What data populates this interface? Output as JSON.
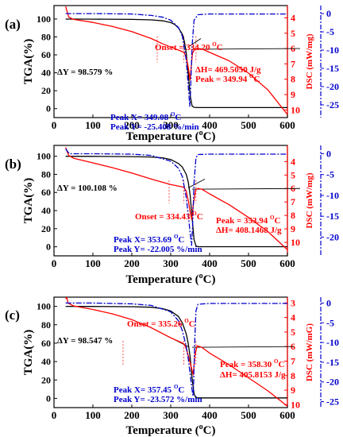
{
  "figure": {
    "x_axis_label_main": "Temperature (",
    "x_axis_label_unit": "C)",
    "x_axis_label_degree": "o"
  },
  "colors": {
    "tga": "#000000",
    "dsc": "#ff0000",
    "dtg": "#0000cc"
  },
  "chart_data": [
    {
      "type": "line",
      "panel_label": "(a)",
      "xlabel": "Temperature (oC)",
      "xlim": [
        0,
        600
      ],
      "x_ticks": [
        0,
        100,
        200,
        300,
        400,
        500,
        600
      ],
      "ylabel_left": "TGA(%)",
      "ylim_left": [
        -10,
        115
      ],
      "y_ticks_left": [
        0,
        20,
        40,
        60,
        80,
        100
      ],
      "ylabel_right1": "DSC (mW/mg)",
      "ylim_right1": [
        10.5,
        3.2
      ],
      "y_ticks_right1": [
        4,
        5,
        6,
        7,
        8,
        9,
        10
      ],
      "ylabel_right2": "DTG (%/min)",
      "ylim_right2": [
        -28.5,
        2.2
      ],
      "y_ticks_right2": [
        0,
        -5,
        -10,
        -15,
        -20,
        -25
      ],
      "series": [
        {
          "axis": "tga",
          "x": [
            30,
            100,
            200,
            250,
            280,
            300,
            310,
            320,
            330,
            335,
            340,
            345,
            350,
            355,
            360,
            370,
            400,
            500,
            600
          ],
          "values": [
            99.9,
            99.8,
            99.6,
            99.0,
            98.0,
            96.0,
            94.0,
            90.0,
            83.0,
            75.0,
            62.0,
            40.0,
            15.0,
            3.0,
            1.4,
            1.2,
            1.2,
            1.2,
            1.2
          ]
        },
        {
          "axis": "dsc",
          "x": [
            30,
            34,
            38,
            50,
            100,
            150,
            200,
            250,
            280,
            300,
            320,
            334,
            340,
            345,
            350,
            352,
            356,
            362,
            370,
            380,
            400,
            450,
            500,
            550,
            600
          ],
          "values": [
            3.25,
            3.62,
            3.95,
            4.1,
            4.3,
            4.56,
            4.9,
            5.35,
            5.7,
            5.9,
            6.1,
            6.25,
            6.55,
            7.2,
            8.05,
            7.4,
            6.3,
            6.05,
            6.0,
            6.02,
            6.25,
            6.8,
            7.6,
            8.7,
            10.3
          ]
        },
        {
          "axis": "dtg",
          "x": [
            30,
            100,
            200,
            250,
            280,
            300,
            320,
            330,
            340,
            345,
            349,
            350,
            352,
            355,
            360,
            370,
            400,
            500,
            600
          ],
          "values": [
            0.0,
            0.0,
            -0.1,
            -0.5,
            -1.0,
            -1.8,
            -3.8,
            -6.2,
            -12.8,
            -19.5,
            -25.408,
            -24.0,
            -18.0,
            -9.0,
            -1.8,
            -0.3,
            -0.1,
            -0.1,
            -0.1
          ]
        }
      ],
      "annotations": {
        "dy": "ΔY = 98.579 %",
        "onset": "Onset = 334.20 ",
        "onset_unit": "C",
        "dh": "ΔH= 469.5050 J/g",
        "peak_dsc": "Peak = 349.94 ",
        "peak_dsc_unit": "C",
        "peak_x": "Peak X= 349.08 ",
        "peak_x_unit": "C",
        "peak_y": "Peak Y= -25.408 %/min"
      }
    },
    {
      "type": "line",
      "panel_label": "(b)",
      "xlabel": "Temperature (oC)",
      "xlim": [
        0,
        600
      ],
      "x_ticks": [
        0,
        100,
        200,
        300,
        400,
        500,
        600
      ],
      "ylabel_left": "TGA(%)",
      "ylim_left": [
        -10,
        112
      ],
      "y_ticks_left": [
        0,
        20,
        40,
        60,
        80,
        100
      ],
      "ylabel_right1": "DSC (mW/mg)",
      "ylim_right1": [
        11.0,
        2.8
      ],
      "y_ticks_right1": [
        4,
        5,
        6,
        7,
        8,
        9,
        10
      ],
      "ylabel_right2": "DTG (%/min)",
      "ylim_right2": [
        -24.5,
        2.0
      ],
      "y_ticks_right2": [
        0,
        -5,
        -10,
        -15,
        -20
      ],
      "series": [
        {
          "axis": "tga",
          "x": [
            30,
            100,
            200,
            250,
            280,
            300,
            320,
            330,
            340,
            345,
            350,
            355,
            360,
            365,
            370,
            400,
            500,
            600
          ],
          "values": [
            100.0,
            99.9,
            99.6,
            99.2,
            98.2,
            96.5,
            92.0,
            88.0,
            80.0,
            72.0,
            57.0,
            32.0,
            8.0,
            1.0,
            0.1,
            0.1,
            0.1,
            0.1
          ]
        },
        {
          "axis": "dsc",
          "x": [
            30,
            33,
            38,
            50,
            100,
            150,
            200,
            250,
            300,
            330,
            334,
            340,
            346,
            350,
            354,
            358,
            364,
            370,
            380,
            400,
            450,
            500,
            550,
            600
          ],
          "values": [
            2.95,
            3.2,
            3.55,
            3.75,
            4.1,
            4.45,
            4.85,
            5.3,
            5.7,
            5.88,
            5.92,
            6.2,
            7.0,
            7.75,
            8.3,
            7.2,
            6.1,
            6.0,
            6.05,
            6.4,
            7.2,
            8.15,
            9.2,
            10.55
          ]
        },
        {
          "axis": "dtg",
          "x": [
            30,
            35,
            40,
            100,
            200,
            250,
            300,
            320,
            330,
            340,
            345,
            350,
            353.69,
            356,
            360,
            365,
            370,
            400,
            500,
            600
          ],
          "values": [
            1.2,
            0.5,
            0.0,
            0.0,
            -0.1,
            -0.4,
            -1.8,
            -3.5,
            -5.5,
            -10.5,
            -14.5,
            -19.0,
            -22.005,
            -18.0,
            -7.0,
            -1.0,
            -0.2,
            -0.1,
            -0.1,
            -0.1
          ]
        }
      ],
      "annotations": {
        "dy": "ΔY = 100.108 %",
        "onset": "Onset = 334.43 ",
        "onset_unit": "C",
        "dh": "ΔH= 408.1468 J/g",
        "peak_dsc": "Peak = 353.94 ",
        "peak_dsc_unit": "C",
        "peak_x": "Peak X= 353.69 ",
        "peak_x_unit": "C",
        "peak_y": "Peak Y= -22.005 %/min"
      }
    },
    {
      "type": "line",
      "panel_label": "(c)",
      "xlabel": "Temperature (oC)",
      "xlim": [
        0,
        600
      ],
      "x_ticks": [
        0,
        100,
        200,
        300,
        400,
        500,
        600
      ],
      "ylabel_left": "TGA(%)",
      "ylim_left": [
        -10,
        110
      ],
      "y_ticks_left": [
        0,
        20,
        40,
        60,
        80,
        100
      ],
      "ylabel_right1": "DSC (mW/mG)",
      "ylim_right1": [
        10.2,
        2.6
      ],
      "y_ticks_right1": [
        3,
        4,
        5,
        6,
        7,
        8,
        9,
        10
      ],
      "ylabel_right2": "DTG (%/min)",
      "ylim_right2": [
        -26.5,
        1.5
      ],
      "y_ticks_right2": [
        0,
        -5,
        -10,
        -15,
        -20,
        -25
      ],
      "series": [
        {
          "axis": "tga",
          "x": [
            30,
            100,
            200,
            250,
            280,
            300,
            320,
            330,
            340,
            345,
            350,
            355,
            360,
            365,
            370,
            400,
            500,
            600
          ],
          "values": [
            100.0,
            99.9,
            99.6,
            99.0,
            97.5,
            95.0,
            89.0,
            82.0,
            70.0,
            60.0,
            45.0,
            22.0,
            5.0,
            0.8,
            0.5,
            0.5,
            0.5,
            0.5
          ]
        },
        {
          "axis": "dsc",
          "x": [
            30,
            33,
            36,
            50,
            100,
            150,
            200,
            250,
            300,
            330,
            335,
            340,
            348,
            354,
            358,
            362,
            368,
            380,
            400,
            450,
            500,
            550,
            600
          ],
          "values": [
            2.72,
            2.62,
            3.0,
            3.2,
            3.45,
            3.75,
            4.15,
            4.7,
            5.4,
            5.75,
            5.85,
            6.15,
            6.9,
            7.55,
            7.95,
            6.6,
            5.95,
            6.05,
            6.45,
            7.25,
            8.15,
            9.05,
            10.1
          ]
        },
        {
          "axis": "dtg",
          "x": [
            30,
            100,
            200,
            250,
            300,
            320,
            330,
            340,
            345,
            350,
            355,
            357.45,
            359,
            362,
            365,
            370,
            400,
            500,
            600
          ],
          "values": [
            0.0,
            0.0,
            -0.2,
            -0.6,
            -2.2,
            -4.5,
            -7.0,
            -11.0,
            -14.0,
            -18.0,
            -22.0,
            -23.572,
            -20.0,
            -9.0,
            -2.0,
            -0.3,
            -0.1,
            -0.1,
            -0.1
          ]
        }
      ],
      "annotations": {
        "dy": "ΔY = 98.547 %",
        "onset": "Onset = 335.26 ",
        "onset_unit": "C",
        "dh": "ΔH= 405.8153 J/g",
        "peak_dsc": "Peak = 358.30 ",
        "peak_dsc_unit": "C",
        "peak_x": "Peak X= 357.45 ",
        "peak_x_unit": "C",
        "peak_y": "Peak Y= -23.572 %/min"
      }
    }
  ]
}
